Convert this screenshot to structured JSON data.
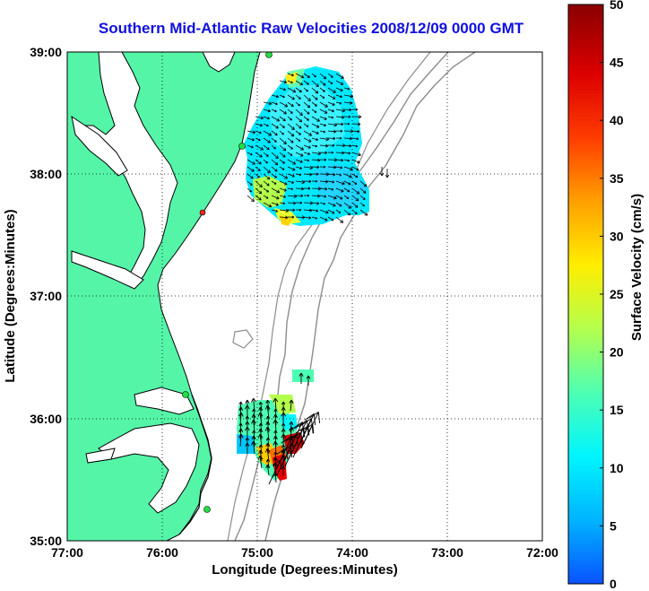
{
  "title": "Southern Mid-Atlantic Raw Velocities 2008/12/09 0000 GMT",
  "map": {
    "xlabel": "Longitude (Degrees:Minutes)",
    "ylabel": "Latitude (Degrees:Minutes)",
    "lon_ticks": [
      "77:00",
      "76:00",
      "75:00",
      "74:00",
      "73:00",
      "72:00"
    ],
    "lat_ticks": [
      "39:00",
      "38:00",
      "37:00",
      "36:00",
      "35:00"
    ],
    "lon_range": [
      -77,
      -72
    ],
    "lat_range": [
      35,
      39
    ],
    "colors": {
      "land": "#55f5a8",
      "water": "#ffffff",
      "coast": "#000000",
      "isobath": "#8c8c8c"
    }
  },
  "colorbar": {
    "label": "Surface Velocity (cm/s)",
    "ticks": [
      "50",
      "45",
      "40",
      "35",
      "30",
      "25",
      "20",
      "15",
      "10",
      "5",
      "0"
    ],
    "range": [
      0,
      50
    ],
    "colors": [
      "#0a52ff",
      "#00b4ff",
      "#00f5ff",
      "#4dffb3",
      "#b4ff4d",
      "#ffee00",
      "#ffa000",
      "#ff3c00",
      "#dc0000",
      "#8a0000"
    ]
  }
}
